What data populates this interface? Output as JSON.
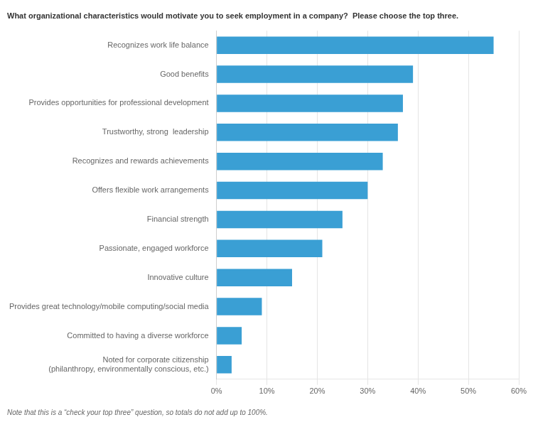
{
  "chart_data": {
    "type": "bar",
    "orientation": "horizontal",
    "title": "What organizational characteristics would motivate you to seek employment in a company?  Please choose the top three.",
    "note": "Note that this is a “check your top three” question, so totals do not add up to 100%.",
    "categories": [
      "Noted for corporate citizenship\n(philanthropy, environmentally conscious, etc.)",
      "Committed to having a diverse workforce",
      "Provides great technology/mobile computing/social media",
      "Innovative culture",
      "Passionate, engaged workforce",
      "Financial strength",
      "Offers flexible work arrangements",
      "Recognizes and rewards achievements",
      "Trustworthy, strong  leadership",
      "Provides opportunities for professional development",
      "Good benefits",
      "Recognizes work life balance"
    ],
    "values": [
      3,
      5,
      9,
      15,
      21,
      25,
      30,
      33,
      36,
      37,
      39,
      55
    ],
    "color": "#3a9fd4",
    "xlim": [
      0,
      60
    ],
    "xticks": [
      {
        "value": 0,
        "label": "0%"
      },
      {
        "value": 10,
        "label": "10%"
      },
      {
        "value": 20,
        "label": "20%"
      },
      {
        "value": 30,
        "label": "30%"
      },
      {
        "value": 40,
        "label": "40%"
      },
      {
        "value": 50,
        "label": "50%"
      },
      {
        "value": 60,
        "label": "60%"
      }
    ],
    "grid": true
  }
}
